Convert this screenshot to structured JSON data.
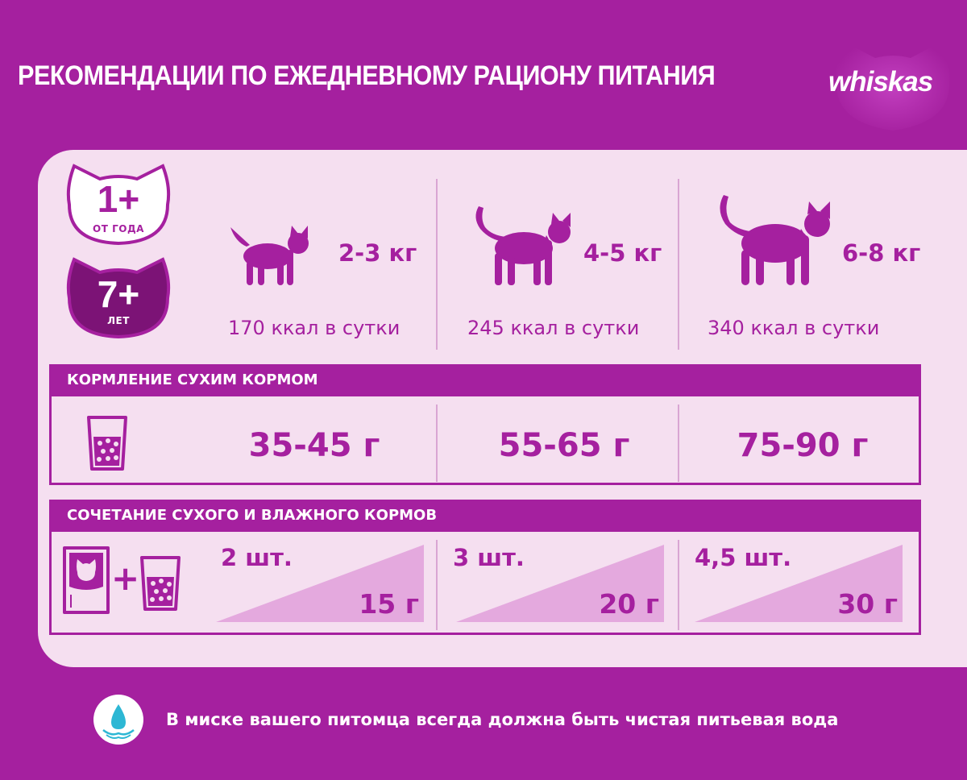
{
  "header": {
    "title": "РЕКОМЕНДАЦИИ ПО ЕЖЕДНЕВНОМУ РАЦИОНУ ПИТАНИЯ",
    "brand": "whiskas"
  },
  "age_badges": [
    {
      "number": "1+",
      "label": "ОТ ГОДА"
    },
    {
      "number": "7+",
      "label": "ЛЕТ"
    }
  ],
  "weight_columns": [
    {
      "weight": "2-3 кг",
      "kcal": "170 ккал в сутки",
      "icon": "small-cat-icon"
    },
    {
      "weight": "4-5 кг",
      "kcal": "245 ккал в сутки",
      "icon": "medium-cat-icon"
    },
    {
      "weight": "6-8 кг",
      "kcal": "340 ккал в сутки",
      "icon": "large-cat-icon"
    }
  ],
  "dry_feeding": {
    "heading": "КОРМЛЕНИЕ СУХИМ КОРМОМ",
    "icon": "dry-food-cup-icon",
    "values": [
      "35-45 г",
      "55-65 г",
      "75-90 г"
    ]
  },
  "combined_feeding": {
    "heading": "СОЧЕТАНИЕ СУХОГО И ВЛАЖНОГО КОРМОВ",
    "icons": [
      "wet-food-pouch-icon",
      "plus-icon",
      "dry-food-cup-icon"
    ],
    "plus": "+",
    "rows": [
      {
        "pouches": "2 шт.",
        "dry": "15 г"
      },
      {
        "pouches": "3 шт.",
        "dry": "20 г"
      },
      {
        "pouches": "4,5 шт.",
        "dry": "30 г"
      }
    ]
  },
  "footer": {
    "note": "В миске вашего питомца всегда должна быть чистая питьевая вода",
    "icon": "water-drop-icon"
  },
  "colors": {
    "background": "#a5209f",
    "panel": "#f5dff0",
    "accent": "#a5209f",
    "triangle": "#e4a9de"
  }
}
